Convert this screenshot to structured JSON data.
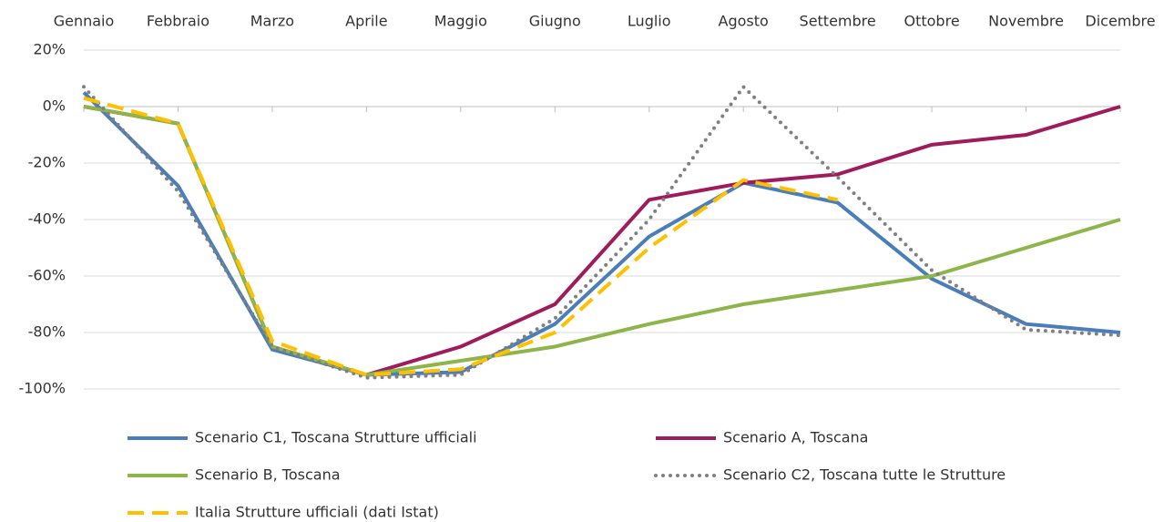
{
  "chart_data": {
    "type": "line",
    "categories": [
      "Gennaio",
      "Febbraio",
      "Marzo",
      "Aprile",
      "Maggio",
      "Giugno",
      "Luglio",
      "Agosto",
      "Settembre",
      "Ottobre",
      "Novembre",
      "Dicembre"
    ],
    "ylim": [
      -100,
      20
    ],
    "yticks": [
      {
        "value": -100,
        "label": "-100%"
      },
      {
        "value": -80,
        "label": "-80%"
      },
      {
        "value": -60,
        "label": "-60%"
      },
      {
        "value": -40,
        "label": "-40%"
      },
      {
        "value": -20,
        "label": "-20%"
      },
      {
        "value": 0,
        "label": "0%"
      },
      {
        "value": 20,
        "label": "20%"
      }
    ],
    "grid": true,
    "series": [
      {
        "name": "Scenario C1, Toscana Strutture ufficiali",
        "color": "#4a7ebb",
        "line_style": "solid",
        "values": [
          5,
          -28,
          -86,
          -95,
          -94,
          -77,
          -46,
          -27,
          -34,
          -61,
          -77,
          -80
        ]
      },
      {
        "name": "Scenario A, Toscana",
        "color": "#9e1c5c",
        "line_style": "solid",
        "values": [
          0,
          -6,
          -85,
          -95,
          -85,
          -70,
          -33,
          -27,
          -24,
          -13.5,
          -10,
          0
        ]
      },
      {
        "name": "Scenario B, Toscana",
        "color": "#8db54a",
        "line_style": "solid",
        "values": [
          0,
          -6,
          -85,
          -95,
          -90,
          -85,
          -77,
          -70,
          -65,
          -60,
          -50,
          -40
        ]
      },
      {
        "name": "Scenario C2,  Toscana tutte le Strutture",
        "color": "#808080",
        "line_style": "dotted",
        "values": [
          7,
          -30,
          -85,
          -96,
          -95,
          -75,
          -40,
          7,
          -25,
          -58,
          -79,
          -81
        ]
      },
      {
        "name": "Italia Strutture ufficiali (dati Istat)",
        "color": "#ffc000",
        "line_style": "dashed",
        "values": [
          3,
          -6,
          -83,
          -95,
          -93,
          -80,
          -50,
          -26,
          -33,
          null,
          null,
          null
        ]
      }
    ]
  }
}
